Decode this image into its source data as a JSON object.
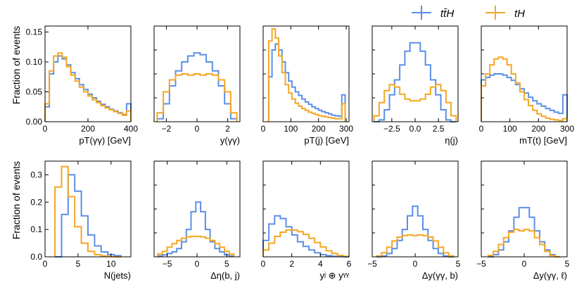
{
  "colors": {
    "ttH": "#5b8fe6",
    "tH": "#f5a623"
  },
  "legend": [
    {
      "label": "tt̄H",
      "color_key": "ttH"
    },
    {
      "label": "tH",
      "color_key": "tH"
    }
  ],
  "chart_data": [
    {
      "type": "histogram",
      "xlabel": "pT(γγ) [GeV]",
      "ylabel": "Fraction of events",
      "xlim": [
        0,
        400
      ],
      "ylim": [
        0,
        0.16
      ],
      "xticks": [
        0,
        200,
        400
      ],
      "xticklabels": [
        "0",
        "200",
        "400"
      ],
      "yticks": [
        0,
        0.05,
        0.1,
        0.15
      ],
      "yticklabels": [
        "0.00",
        "0.05",
        "0.10",
        "0.15"
      ],
      "bin_edges": [
        0,
        20,
        40,
        60,
        80,
        100,
        120,
        140,
        160,
        180,
        200,
        220,
        240,
        260,
        280,
        300,
        320,
        340,
        360,
        380,
        400
      ],
      "series": [
        {
          "name": "ttH",
          "values": [
            0.025,
            0.08,
            0.1,
            0.11,
            0.105,
            0.095,
            0.082,
            0.072,
            0.062,
            0.054,
            0.046,
            0.04,
            0.034,
            0.029,
            0.025,
            0.021,
            0.018,
            0.015,
            0.012,
            0.03
          ]
        },
        {
          "name": "tH",
          "values": [
            0.03,
            0.085,
            0.11,
            0.115,
            0.108,
            0.092,
            0.078,
            0.068,
            0.058,
            0.05,
            0.043,
            0.037,
            0.032,
            0.027,
            0.023,
            0.02,
            0.017,
            0.014,
            0.011,
            0.018
          ]
        }
      ]
    },
    {
      "type": "histogram",
      "xlabel": "y(γγ)",
      "ylabel": "",
      "xlim": [
        -2.8,
        2.8
      ],
      "ylim": [
        0,
        0.16
      ],
      "xticks": [
        -2,
        0,
        2
      ],
      "xticklabels": [
        "−2",
        "0",
        "2"
      ],
      "yticks": [],
      "yticklabels": [],
      "bin_edges": [
        -2.6,
        -2.2,
        -1.8,
        -1.4,
        -1.0,
        -0.6,
        -0.2,
        0.2,
        0.6,
        1.0,
        1.4,
        1.8,
        2.2,
        2.6
      ],
      "series": [
        {
          "name": "ttH",
          "values": [
            0.005,
            0.03,
            0.06,
            0.085,
            0.1,
            0.11,
            0.115,
            0.112,
            0.1,
            0.085,
            0.06,
            0.03,
            0.005
          ]
        },
        {
          "name": "tH",
          "values": [
            0.015,
            0.05,
            0.07,
            0.078,
            0.08,
            0.078,
            0.08,
            0.078,
            0.08,
            0.078,
            0.07,
            0.05,
            0.015
          ]
        }
      ]
    },
    {
      "type": "histogram",
      "xlabel": "pT(j) [GeV]",
      "ylabel": "",
      "xlim": [
        0,
        310
      ],
      "ylim": [
        0,
        0.16
      ],
      "xticks": [
        0,
        100,
        200,
        300
      ],
      "xticklabels": [
        "0",
        "100",
        "200",
        "300"
      ],
      "yticks": [],
      "yticklabels": [],
      "bin_edges": [
        20,
        32,
        44,
        56,
        68,
        80,
        92,
        104,
        116,
        128,
        140,
        152,
        164,
        176,
        188,
        200,
        212,
        224,
        236,
        248,
        260,
        272,
        284,
        296
      ],
      "series": [
        {
          "name": "ttH",
          "values": [
            0.075,
            0.12,
            0.13,
            0.12,
            0.1,
            0.082,
            0.068,
            0.058,
            0.05,
            0.044,
            0.038,
            0.033,
            0.029,
            0.025,
            0.022,
            0.019,
            0.017,
            0.015,
            0.013,
            0.011,
            0.01,
            0.009,
            0.045
          ]
        },
        {
          "name": "tH",
          "values": [
            0.135,
            0.155,
            0.14,
            0.11,
            0.082,
            0.062,
            0.048,
            0.038,
            0.031,
            0.026,
            0.022,
            0.019,
            0.016,
            0.014,
            0.012,
            0.01,
            0.009,
            0.008,
            0.007,
            0.006,
            0.005,
            0.005,
            0.03
          ]
        }
      ]
    },
    {
      "type": "histogram",
      "xlabel": "η(j)",
      "ylabel": "",
      "xlim": [
        -4.6,
        4.6
      ],
      "ylim": [
        0,
        0.16
      ],
      "xticks": [
        -2.5,
        0,
        2.5
      ],
      "xticklabels": [
        "−2.5",
        "0.0",
        "2.5"
      ],
      "yticks": [],
      "yticklabels": [],
      "bin_edges": [
        -4.4,
        -3.85,
        -3.3,
        -2.75,
        -2.2,
        -1.65,
        -1.1,
        -0.55,
        0.0,
        0.55,
        1.1,
        1.65,
        2.2,
        2.75,
        3.3,
        3.85,
        4.4
      ],
      "series": [
        {
          "name": "ttH",
          "values": [
            0.0,
            0.003,
            0.02,
            0.045,
            0.07,
            0.095,
            0.118,
            0.132,
            0.132,
            0.118,
            0.095,
            0.07,
            0.045,
            0.02,
            0.003,
            0.0
          ]
        },
        {
          "name": "tH",
          "values": [
            0.01,
            0.032,
            0.052,
            0.062,
            0.058,
            0.046,
            0.038,
            0.035,
            0.035,
            0.038,
            0.046,
            0.058,
            0.062,
            0.052,
            0.032,
            0.01
          ]
        }
      ]
    },
    {
      "type": "histogram",
      "xlabel": "mT(t) [GeV]",
      "ylabel": "",
      "xlim": [
        0,
        300
      ],
      "ylim": [
        0,
        0.16
      ],
      "xticks": [
        0,
        100,
        200,
        300
      ],
      "xticklabels": [
        "0",
        "100",
        "200",
        "300"
      ],
      "yticks": [],
      "yticklabels": [],
      "bin_edges": [
        0,
        15,
        30,
        45,
        60,
        75,
        90,
        105,
        120,
        135,
        150,
        165,
        180,
        195,
        210,
        225,
        240,
        255,
        270,
        285,
        300
      ],
      "series": [
        {
          "name": "ttH",
          "values": [
            0.07,
            0.074,
            0.078,
            0.08,
            0.08,
            0.078,
            0.074,
            0.069,
            0.062,
            0.055,
            0.048,
            0.041,
            0.035,
            0.03,
            0.026,
            0.022,
            0.019,
            0.016,
            0.014,
            0.045
          ]
        },
        {
          "name": "tH",
          "values": [
            0.06,
            0.08,
            0.095,
            0.105,
            0.108,
            0.105,
            0.095,
            0.08,
            0.065,
            0.05,
            0.037,
            0.027,
            0.019,
            0.013,
            0.009,
            0.006,
            0.004,
            0.003,
            0.002,
            0.005
          ]
        }
      ]
    },
    {
      "type": "histogram",
      "xlabel": "N(jets)",
      "ylabel": "Fraction of events",
      "xlim": [
        0,
        13
      ],
      "ylim": [
        0,
        0.35
      ],
      "xticks": [
        0,
        5,
        10
      ],
      "xticklabels": [
        "0",
        "5",
        "10"
      ],
      "yticks": [
        0,
        0.1,
        0.2,
        0.3
      ],
      "yticklabels": [
        "0.0",
        "0.1",
        "0.2",
        "0.3"
      ],
      "bin_edges": [
        1.5,
        2.5,
        3.5,
        4.5,
        5.5,
        6.5,
        7.5,
        8.5,
        9.5,
        10.5,
        11.5
      ],
      "series": [
        {
          "name": "ttH",
          "values": [
            0.0,
            0.155,
            0.3,
            0.24,
            0.15,
            0.08,
            0.04,
            0.018,
            0.008,
            0.004
          ]
        },
        {
          "name": "tH",
          "values": [
            0.255,
            0.33,
            0.22,
            0.11,
            0.05,
            0.02,
            0.008,
            0.003,
            0.001,
            0.0
          ]
        }
      ]
    },
    {
      "type": "histogram",
      "xlabel": "Δη(b, j)",
      "ylabel": "",
      "xlim": [
        -7.2,
        7.2
      ],
      "ylim": [
        0,
        0.35
      ],
      "xticks": [
        -5,
        0,
        5
      ],
      "xticklabels": [
        "−5",
        "0",
        "5"
      ],
      "yticks": [],
      "yticklabels": [],
      "bin_edges": [
        -6.6,
        -5.8,
        -5.0,
        -4.2,
        -3.4,
        -2.6,
        -1.8,
        -1.0,
        -0.2,
        0.6,
        1.4,
        2.2,
        3.0,
        3.8,
        4.6,
        5.4,
        6.2
      ],
      "series": [
        {
          "name": "ttH",
          "values": [
            0.003,
            0.007,
            0.012,
            0.018,
            0.03,
            0.055,
            0.1,
            0.165,
            0.2,
            0.165,
            0.1,
            0.055,
            0.03,
            0.018,
            0.007,
            0.003
          ]
        },
        {
          "name": "tH",
          "values": [
            0.01,
            0.02,
            0.035,
            0.048,
            0.06,
            0.068,
            0.073,
            0.075,
            0.075,
            0.073,
            0.068,
            0.06,
            0.048,
            0.035,
            0.02,
            0.01
          ]
        }
      ]
    },
    {
      "type": "histogram",
      "xlabel": "yʲ ⊕ yᵞᵞ",
      "ylabel": "",
      "xlim": [
        0,
        6
      ],
      "ylim": [
        0,
        0.35
      ],
      "xticks": [
        0,
        2,
        4,
        6
      ],
      "xticklabels": [
        "0",
        "2",
        "4",
        "6"
      ],
      "yticks": [],
      "yticklabels": [],
      "bin_edges": [
        0,
        0.4,
        0.8,
        1.2,
        1.6,
        2.0,
        2.4,
        2.8,
        3.2,
        3.6,
        4.0,
        4.4,
        4.8,
        5.2,
        5.6,
        6.0
      ],
      "series": [
        {
          "name": "ttH",
          "values": [
            0.06,
            0.12,
            0.15,
            0.14,
            0.11,
            0.08,
            0.055,
            0.038,
            0.025,
            0.015,
            0.008,
            0.004,
            0.002,
            0.001,
            0.0
          ]
        },
        {
          "name": "tH",
          "values": [
            0.025,
            0.05,
            0.075,
            0.09,
            0.098,
            0.098,
            0.092,
            0.082,
            0.068,
            0.052,
            0.036,
            0.022,
            0.012,
            0.005,
            0.002
          ]
        }
      ]
    },
    {
      "type": "histogram",
      "xlabel": "Δy(γγ, b)",
      "ylabel": "",
      "xlim": [
        -5,
        5
      ],
      "ylim": [
        0,
        0.35
      ],
      "xticks": [
        -5,
        0,
        5
      ],
      "xticklabels": [
        "−5",
        "0",
        "5"
      ],
      "yticks": [],
      "yticklabels": [],
      "bin_edges": [
        -4.5,
        -3.9,
        -3.3,
        -2.7,
        -2.1,
        -1.5,
        -0.9,
        -0.3,
        0.3,
        0.9,
        1.5,
        2.1,
        2.7,
        3.3,
        3.9,
        4.5
      ],
      "series": [
        {
          "name": "ttH",
          "values": [
            0.0,
            0.003,
            0.012,
            0.03,
            0.06,
            0.1,
            0.15,
            0.185,
            0.15,
            0.1,
            0.06,
            0.03,
            0.012,
            0.003,
            0.0
          ]
        },
        {
          "name": "tH",
          "values": [
            0.003,
            0.015,
            0.035,
            0.058,
            0.072,
            0.078,
            0.08,
            0.078,
            0.08,
            0.078,
            0.072,
            0.058,
            0.035,
            0.015,
            0.003
          ]
        }
      ]
    },
    {
      "type": "histogram",
      "xlabel": "Δy(γγ, ℓ)",
      "ylabel": "",
      "xlim": [
        -5,
        5
      ],
      "ylim": [
        0,
        0.35
      ],
      "xticks": [
        -5,
        0,
        5
      ],
      "xticklabels": [
        "−5",
        "0",
        "5"
      ],
      "yticks": [],
      "yticklabels": [],
      "bin_edges": [
        -4.2,
        -3.6,
        -3.0,
        -2.4,
        -1.8,
        -1.2,
        -0.6,
        0.0,
        0.6,
        1.2,
        1.8,
        2.4,
        3.0,
        3.6,
        4.2
      ],
      "series": [
        {
          "name": "ttH",
          "values": [
            0.0,
            0.008,
            0.025,
            0.055,
            0.095,
            0.145,
            0.18,
            0.18,
            0.145,
            0.095,
            0.055,
            0.025,
            0.008,
            0.0
          ]
        },
        {
          "name": "tH",
          "values": [
            0.005,
            0.02,
            0.045,
            0.07,
            0.09,
            0.1,
            0.095,
            0.1,
            0.095,
            0.07,
            0.045,
            0.02,
            0.005,
            0.0
          ]
        }
      ]
    }
  ]
}
